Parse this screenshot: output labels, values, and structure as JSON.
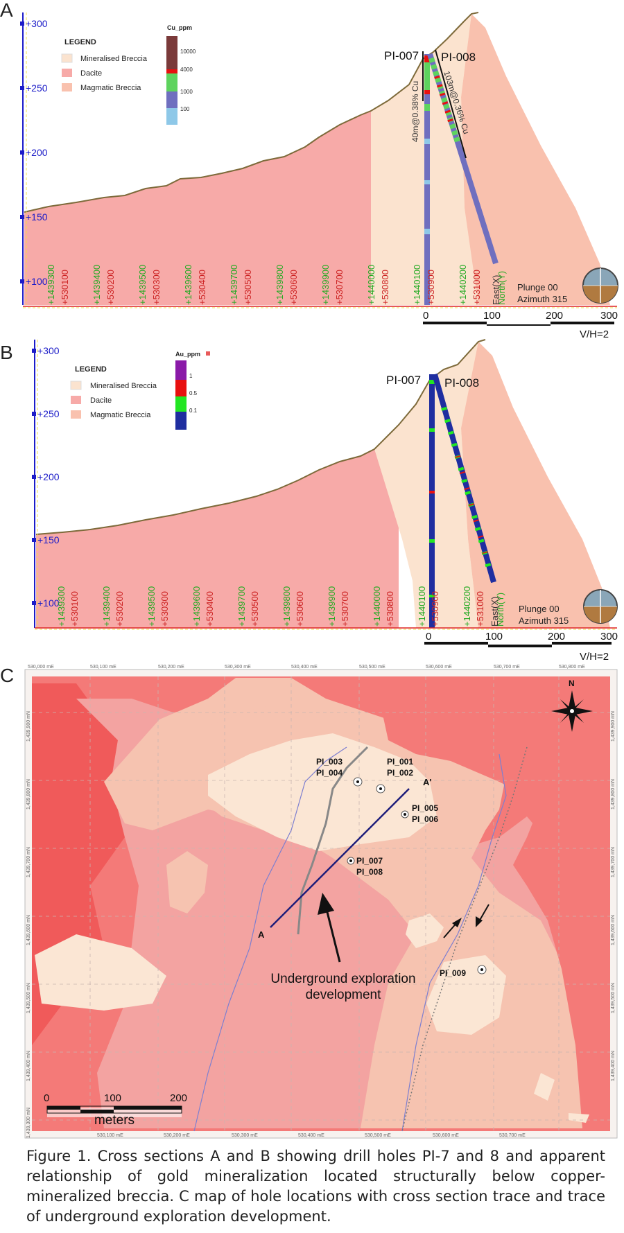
{
  "colors": {
    "mineralised_breccia": "#fbe3cf",
    "dacite": "#f7aaa8",
    "magmatic_breccia": "#f9c1ae",
    "terrain_line": "#7d6a3a",
    "axis_blue": "#1c1cc8",
    "map_red_dark": "#f05a5a",
    "map_red": "#f47a78",
    "map_pink": "#f3a3a1",
    "map_salmon": "#f6c3b0",
    "map_cream": "#fbe6d4",
    "section_line": "#1d1d7a",
    "cu_colors": [
      "#7a3a3a",
      "#e81010",
      "#5ed35e",
      "#6f6fbf",
      "#8ec8e8"
    ],
    "au_colors": [
      "#8a1aa8",
      "#e81010",
      "#22e622",
      "#1f2ea0"
    ]
  },
  "section_a": {
    "panel_label": "A",
    "elevations": [
      "+300",
      "+250",
      "+200",
      "+150",
      "+100"
    ],
    "legend_title": "LEGEND",
    "legend_items": [
      "Mineralised Breccia",
      "Dacite",
      "Magmatic Breccia"
    ],
    "color_scale_title": "Cu_ppm",
    "color_scale_labels": [
      "10000",
      "4000",
      "1000",
      "100"
    ],
    "drill_labels": [
      "PI-007",
      "PI-008"
    ],
    "intercepts": [
      "40m@0.38% Cu",
      "103m@0.36% Cu"
    ],
    "grid_north_labels": [
      "+1439300",
      "+1439400",
      "+1439500",
      "+1439600",
      "+1439700",
      "+1439800",
      "+1439900",
      "+1440000",
      "+1440100",
      "+1440200"
    ],
    "grid_east_labels": [
      "+530100",
      "+530200",
      "+530300",
      "+530400",
      "+530500",
      "+530600",
      "+530700",
      "+530800",
      "+530900",
      "+531000"
    ],
    "plunge": "Plunge 00",
    "azimuth": "Azimuth 315",
    "north_label": "North(Y)",
    "east_label": "East(X)",
    "scale_labels": [
      "0",
      "100",
      "200",
      "300"
    ],
    "vh_ratio": "V/H=2"
  },
  "section_b": {
    "panel_label": "B",
    "elevations": [
      "+300",
      "+250",
      "+200",
      "+150",
      "+100"
    ],
    "legend_title": "LEGEND",
    "legend_items": [
      "Mineralised Breccia",
      "Dacite",
      "Magmatic Breccia"
    ],
    "color_scale_title": "Au_ppm",
    "color_scale_labels": [
      "1",
      "0.5",
      "0.1"
    ],
    "drill_labels": [
      "PI-007",
      "PI-008"
    ],
    "grid_north_labels": [
      "+1439300",
      "+1439400",
      "+1439500",
      "+1439600",
      "+1439700",
      "+1439800",
      "+1439900",
      "+1440000",
      "+1440100",
      "+1440200"
    ],
    "grid_east_labels": [
      "+530100",
      "+530200",
      "+530300",
      "+530400",
      "+530500",
      "+530600",
      "+530700",
      "+530800",
      "+530900",
      "+531000"
    ],
    "plunge": "Plunge 00",
    "azimuth": "Azimuth 315",
    "north_label": "North(Y)",
    "east_label": "East(X)",
    "scale_labels": [
      "0",
      "100",
      "200",
      "300"
    ],
    "vh_ratio": "V/H=2"
  },
  "map_c": {
    "panel_label": "C",
    "top_easting": [
      "530,000 mE",
      "530,100 mE",
      "530,200 mE",
      "530,300 mE",
      "530,400 mE",
      "530,500 mE",
      "530,600 mE",
      "530,700 mE",
      "530,800 mE"
    ],
    "bottom_easting": [
      "530,100 mE",
      "530,200 mE",
      "530,300 mE",
      "530,400 mE",
      "530,500 mE",
      "530,600 mE",
      "530,700 mE"
    ],
    "northing": [
      "1,439,900 mN",
      "1,439,800 mN",
      "1,439,700 mN",
      "1,439,600 mN",
      "1,439,500 mN",
      "1,439,400 mN",
      "1,439,300 mN"
    ],
    "compass_label": "N",
    "holes": [
      {
        "line1": "PI_003",
        "line2": "PI_004"
      },
      {
        "line1": "PI_001",
        "line2": "PI_002"
      },
      {
        "line1": "PI_005",
        "line2": "PI_006"
      },
      {
        "line1": "PI_007",
        "line2": "PI_008"
      },
      {
        "line1": "PI_009",
        "line2": ""
      }
    ],
    "section_start": "A",
    "section_end": "A'",
    "annotation_line1": "Underground exploration",
    "annotation_line2": "development",
    "scale_labels": [
      "0",
      "100",
      "200"
    ],
    "scale_unit": "meters"
  },
  "caption": "Figure 1. Cross sections A and B showing drill holes PI-7 and 8 and apparent relationship of gold mineralization located structurally below copper-mineralized breccia. C map of hole locations with cross section trace and trace of underground exploration development."
}
